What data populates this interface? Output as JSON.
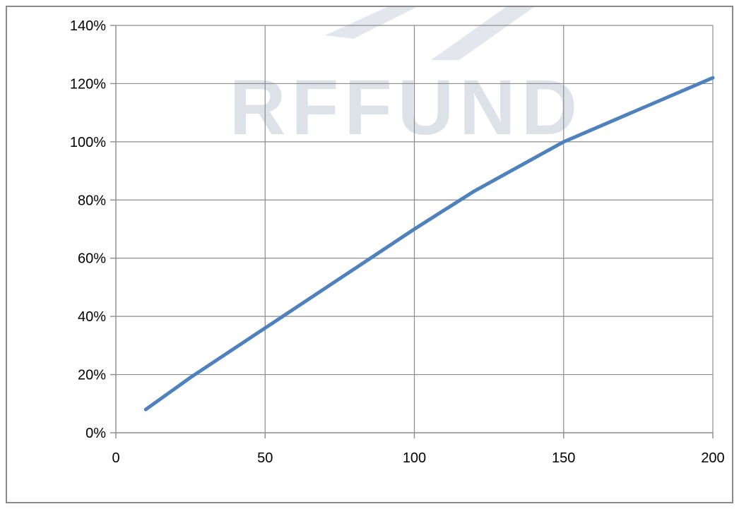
{
  "chart_data": {
    "type": "line",
    "title": "",
    "xlabel": "",
    "ylabel": "",
    "xlim": [
      0,
      200
    ],
    "ylim": [
      0,
      1.4
    ],
    "x_ticks": [
      0,
      50,
      100,
      150,
      200
    ],
    "x_tick_labels": [
      "0",
      "50",
      "100",
      "150",
      "200"
    ],
    "y_ticks": [
      0,
      0.2,
      0.4,
      0.6,
      0.8,
      1.0,
      1.2,
      1.4
    ],
    "y_tick_labels": [
      "0%",
      "20%",
      "40%",
      "60%",
      "80%",
      "100%",
      "120%",
      "140%"
    ],
    "grid": true,
    "legend": "none",
    "series": [
      {
        "color": "#4f81bd",
        "x": [
          10,
          25,
          50,
          75,
          100,
          120,
          150,
          175,
          200
        ],
        "y": [
          0.08,
          0.19,
          0.36,
          0.53,
          0.7,
          0.83,
          1.0,
          1.11,
          1.22
        ]
      }
    ]
  },
  "watermark": {
    "text": "RFFUND",
    "color": "#d0d5df"
  }
}
